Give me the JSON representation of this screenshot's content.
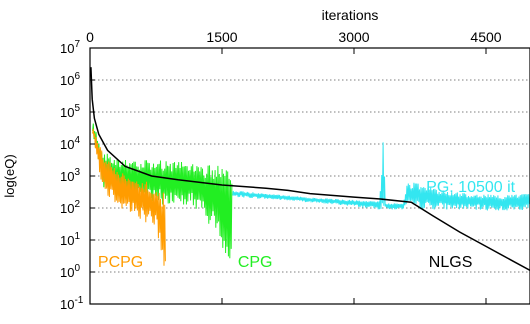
{
  "chart_data": {
    "type": "line",
    "title": "",
    "xlabel": "iterations",
    "ylabel": "log(eQ)",
    "x_axis_position": "top",
    "xlim": [
      0,
      5000
    ],
    "ylim_log10": [
      -1,
      7
    ],
    "y_scale": "log",
    "grid": "horizontal dotted",
    "x_ticks": [
      {
        "value": 0,
        "label": "0"
      },
      {
        "value": 1500,
        "label": "1500"
      },
      {
        "value": 3000,
        "label": "3000"
      },
      {
        "value": 4500,
        "label": "4500"
      }
    ],
    "y_ticks": [
      {
        "exp": 7,
        "base": "10",
        "sup": "7"
      },
      {
        "exp": 6,
        "base": "10",
        "sup": "6"
      },
      {
        "exp": 5,
        "base": "10",
        "sup": "5"
      },
      {
        "exp": 4,
        "base": "10",
        "sup": "4"
      },
      {
        "exp": 3,
        "base": "10",
        "sup": "3"
      },
      {
        "exp": 2,
        "base": "10",
        "sup": "2"
      },
      {
        "exp": 1,
        "base": "10",
        "sup": "1"
      },
      {
        "exp": 0,
        "base": "10",
        "sup": "0"
      },
      {
        "exp": -1,
        "base": "10",
        "sup": "-1"
      }
    ],
    "series": [
      {
        "name": "PG: 10500 it",
        "color": "#33e6f0",
        "style": "noisy band",
        "envelope": [
          {
            "x": 1620,
            "lo": 2.35,
            "hi": 2.55
          },
          {
            "x": 2400,
            "lo": 2.2,
            "hi": 2.35
          },
          {
            "x": 3000,
            "lo": 2.05,
            "hi": 2.25
          },
          {
            "x": 3290,
            "lo": 1.95,
            "hi": 2.2
          },
          {
            "x": 3330,
            "lo": 1.95,
            "hi": 4.15
          },
          {
            "x": 3360,
            "lo": 1.95,
            "hi": 2.15
          },
          {
            "x": 3560,
            "lo": 1.95,
            "hi": 2.15
          },
          {
            "x": 3600,
            "lo": 1.95,
            "hi": 2.85
          },
          {
            "x": 4100,
            "lo": 1.95,
            "hi": 2.5
          },
          {
            "x": 4700,
            "lo": 1.9,
            "hi": 2.4
          },
          {
            "x": 5000,
            "lo": 1.95,
            "hi": 2.45
          }
        ]
      },
      {
        "name": "CPG",
        "color": "#22ee22",
        "style": "noisy band",
        "envelope": [
          {
            "x": 30,
            "lo": 4.3,
            "hi": 4.7
          },
          {
            "x": 150,
            "lo": 2.6,
            "hi": 3.8
          },
          {
            "x": 400,
            "lo": 2.2,
            "hi": 3.5
          },
          {
            "x": 800,
            "lo": 2.1,
            "hi": 3.5
          },
          {
            "x": 1200,
            "lo": 2.0,
            "hi": 3.4
          },
          {
            "x": 1500,
            "lo": 0.8,
            "hi": 3.3
          },
          {
            "x": 1600,
            "lo": -0.1,
            "hi": 3.2
          },
          {
            "x": 1620,
            "lo": 0.1,
            "hi": 3.0
          }
        ]
      },
      {
        "name": "PCPG",
        "color": "#ff9c00",
        "style": "noisy band",
        "envelope": [
          {
            "x": 30,
            "lo": 4.3,
            "hi": 4.6
          },
          {
            "x": 150,
            "lo": 2.5,
            "hi": 3.7
          },
          {
            "x": 350,
            "lo": 2.0,
            "hi": 3.1
          },
          {
            "x": 600,
            "lo": 1.6,
            "hi": 2.9
          },
          {
            "x": 750,
            "lo": 1.4,
            "hi": 2.7
          },
          {
            "x": 820,
            "lo": 0.2,
            "hi": 2.6
          },
          {
            "x": 860,
            "lo": -0.1,
            "hi": 2.5
          }
        ]
      },
      {
        "name": "NLGS",
        "color": "#000000",
        "style": "line",
        "points": [
          [
            10,
            6.4
          ],
          [
            25,
            5.4
          ],
          [
            50,
            4.8
          ],
          [
            100,
            4.3
          ],
          [
            200,
            3.8
          ],
          [
            400,
            3.3
          ],
          [
            700,
            3.0
          ],
          [
            1000,
            2.88
          ],
          [
            1500,
            2.72
          ],
          [
            2000,
            2.62
          ],
          [
            2250,
            2.55
          ],
          [
            2500,
            2.45
          ],
          [
            3000,
            2.34
          ],
          [
            3300,
            2.28
          ],
          [
            3650,
            2.18
          ],
          [
            3900,
            1.75
          ],
          [
            4200,
            1.25
          ],
          [
            4500,
            0.8
          ],
          [
            4800,
            0.35
          ],
          [
            5000,
            0.05
          ]
        ]
      }
    ],
    "annotations": [
      {
        "text": "PG: 10500 it",
        "series": "PG: 10500 it",
        "x": 3820,
        "y": 2.5,
        "color": "#33e6f0"
      },
      {
        "text": "CPG",
        "series": "CPG",
        "x": 1680,
        "y": 0.15,
        "color": "#22ee22"
      },
      {
        "text": "PCPG",
        "series": "PCPG",
        "x": 90,
        "y": 0.15,
        "color": "#ff9c00"
      },
      {
        "text": "NLGS",
        "series": "NLGS",
        "x": 3850,
        "y": 0.15,
        "color": "#000000"
      }
    ]
  }
}
